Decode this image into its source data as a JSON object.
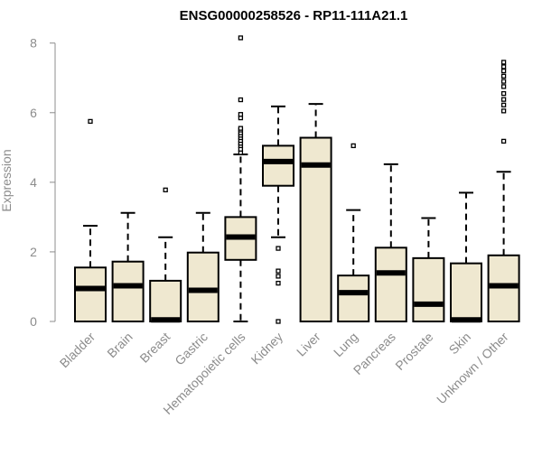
{
  "colors": {
    "box_fill": "#efe8d0",
    "box_stroke": "#000000",
    "axis_text": "#8c8c8c",
    "axis_line": "#8c8c8c"
  },
  "chart_data": {
    "type": "box",
    "title": "ENSG00000258526 - RP11-111A21.1",
    "xlabel": "",
    "ylabel": "Expression",
    "ylim": [
      0,
      8.2
    ],
    "yticks": [
      0,
      2,
      4,
      6,
      8
    ],
    "grid": false,
    "categories": [
      "Bladder",
      "Brain",
      "Breast",
      "Gastric",
      "Hematopoietic cells",
      "Kidney",
      "Liver",
      "Lung",
      "Pancreas",
      "Prostate",
      "Skin",
      "Unknown / Other"
    ],
    "boxes": [
      {
        "category": "Bladder",
        "whisker_low": 0.0,
        "q1": 0.0,
        "median": 0.92,
        "q3": 1.55,
        "whisker_high": 2.75,
        "outliers": [
          5.75
        ]
      },
      {
        "category": "Brain",
        "whisker_low": 0.0,
        "q1": 0.0,
        "median": 1.0,
        "q3": 1.72,
        "whisker_high": 3.12,
        "outliers": []
      },
      {
        "category": "Breast",
        "whisker_low": 0.0,
        "q1": 0.0,
        "median": 0.02,
        "q3": 1.17,
        "whisker_high": 2.42,
        "outliers": [
          3.78
        ]
      },
      {
        "category": "Gastric",
        "whisker_low": 0.0,
        "q1": 0.0,
        "median": 0.87,
        "q3": 1.98,
        "whisker_high": 3.12,
        "outliers": []
      },
      {
        "category": "Hematopoietic cells",
        "whisker_low": 0.0,
        "q1": 1.77,
        "median": 2.4,
        "q3": 3.0,
        "whisker_high": 4.8,
        "outliers": [
          4.85,
          4.95,
          5.05,
          5.12,
          5.2,
          5.28,
          5.35,
          5.42,
          5.5,
          5.55,
          5.85,
          5.95,
          6.37,
          8.15
        ]
      },
      {
        "category": "Kidney",
        "whisker_low": 2.42,
        "q1": 3.9,
        "median": 4.57,
        "q3": 5.05,
        "whisker_high": 6.18,
        "outliers": [
          2.1,
          1.45,
          1.3,
          1.1,
          0.0
        ]
      },
      {
        "category": "Liver",
        "whisker_low": 0.0,
        "q1": 0.0,
        "median": 4.47,
        "q3": 5.28,
        "whisker_high": 6.25,
        "outliers": []
      },
      {
        "category": "Lung",
        "whisker_low": 0.0,
        "q1": 0.0,
        "median": 0.8,
        "q3": 1.32,
        "whisker_high": 3.2,
        "outliers": [
          5.05
        ]
      },
      {
        "category": "Pancreas",
        "whisker_low": 0.0,
        "q1": 0.0,
        "median": 1.37,
        "q3": 2.12,
        "whisker_high": 4.52,
        "outliers": []
      },
      {
        "category": "Prostate",
        "whisker_low": 0.0,
        "q1": 0.0,
        "median": 0.47,
        "q3": 1.82,
        "whisker_high": 2.97,
        "outliers": []
      },
      {
        "category": "Skin",
        "whisker_low": 0.0,
        "q1": 0.0,
        "median": 0.02,
        "q3": 1.67,
        "whisker_high": 3.7,
        "outliers": []
      },
      {
        "category": "Unknown / Other",
        "whisker_low": 0.0,
        "q1": 0.0,
        "median": 1.0,
        "q3": 1.9,
        "whisker_high": 4.3,
        "outliers": [
          5.18,
          6.05,
          6.22,
          6.38,
          6.55,
          6.75,
          6.9,
          7.05,
          7.2,
          7.32,
          7.45
        ]
      }
    ]
  }
}
